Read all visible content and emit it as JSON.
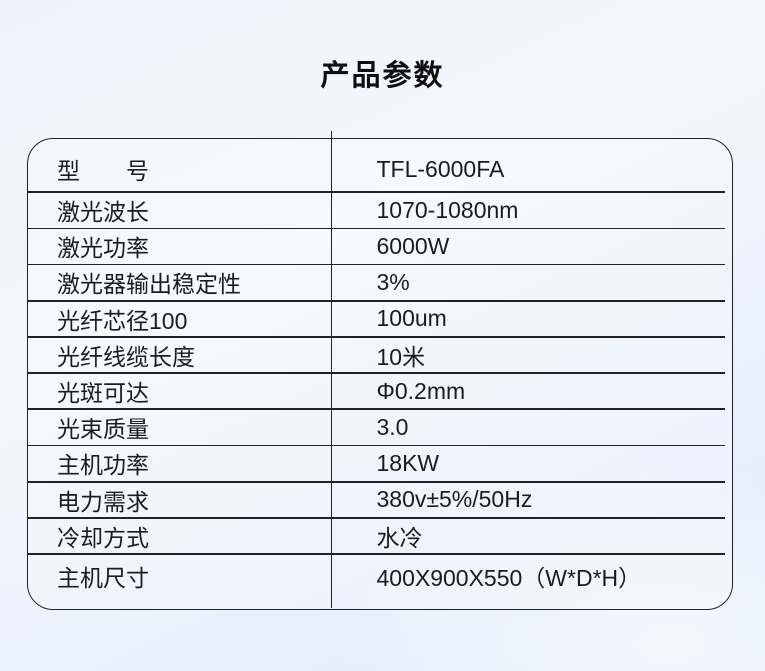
{
  "page": {
    "title": "产品参数"
  },
  "colors": {
    "line": "#222222",
    "text": "#1c1c1c",
    "background_top": "#f4f8fd",
    "background_bottom": "#e2edfa"
  },
  "table": {
    "rows": [
      {
        "label": "型　　号",
        "value": "TFL-6000FA"
      },
      {
        "label": "激光波长",
        "value": "1070-1080nm"
      },
      {
        "label": "激光功率",
        "value": "6000W"
      },
      {
        "label": "激光器输出稳定性",
        "value": "3%"
      },
      {
        "label": "光纤芯径100",
        "value": "100um"
      },
      {
        "label": "光纤线缆长度",
        "value": "10米"
      },
      {
        "label": "光斑可达",
        "value": "Φ0.2mm"
      },
      {
        "label": "光束质量",
        "value": "3.0"
      },
      {
        "label": "主机功率",
        "value": "18KW"
      },
      {
        "label": "电力需求",
        "value": "380v±5%/50Hz"
      },
      {
        "label": "冷却方式",
        "value": "水冷"
      },
      {
        "label": "主机尺寸",
        "value": "400X900X550（W*D*H）"
      }
    ]
  }
}
